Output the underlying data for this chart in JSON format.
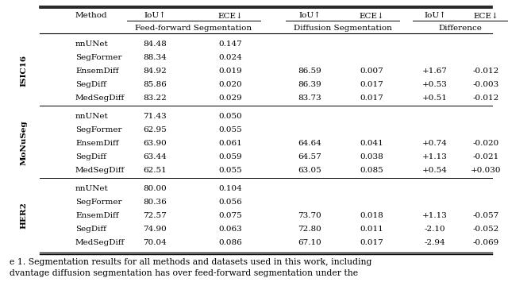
{
  "col_headers_row1": [
    "Method",
    "IoU↑",
    "ECE↓",
    "IoU↑",
    "ECE↓",
    "IoU↑",
    "ECE↓"
  ],
  "col_headers_row2": [
    "Feed-forward Segmentation",
    "Diffusion Segmentation",
    "Difference"
  ],
  "datasets": [
    "ISIC16",
    "MoNuSeg",
    "HER2"
  ],
  "rows": {
    "ISIC16": [
      [
        "nnUNet",
        "84.48",
        "0.147",
        "",
        "",
        "",
        ""
      ],
      [
        "SegFormer",
        "88.34",
        "0.024",
        "",
        "",
        "",
        ""
      ],
      [
        "EnsemDiff",
        "84.92",
        "0.019",
        "86.59",
        "0.007",
        "+1.67",
        "-0.012"
      ],
      [
        "SegDiff",
        "85.86",
        "0.020",
        "86.39",
        "0.017",
        "+0.53",
        "-0.003"
      ],
      [
        "MedSegDiff",
        "83.22",
        "0.029",
        "83.73",
        "0.017",
        "+0.51",
        "-0.012"
      ]
    ],
    "MoNuSeg": [
      [
        "nnUNet",
        "71.43",
        "0.050",
        "",
        "",
        "",
        ""
      ],
      [
        "SegFormer",
        "62.95",
        "0.055",
        "",
        "",
        "",
        ""
      ],
      [
        "EnsemDiff",
        "63.90",
        "0.061",
        "64.64",
        "0.041",
        "+0.74",
        "-0.020"
      ],
      [
        "SegDiff",
        "63.44",
        "0.059",
        "64.57",
        "0.038",
        "+1.13",
        "-0.021"
      ],
      [
        "MedSegDiff",
        "62.51",
        "0.055",
        "63.05",
        "0.085",
        "+0.54",
        "+0.030"
      ]
    ],
    "HER2": [
      [
        "nnUNet",
        "80.00",
        "0.104",
        "",
        "",
        "",
        ""
      ],
      [
        "SegFormer",
        "80.36",
        "0.056",
        "",
        "",
        "",
        ""
      ],
      [
        "EnsemDiff",
        "72.57",
        "0.075",
        "73.70",
        "0.018",
        "+1.13",
        "-0.057"
      ],
      [
        "SegDiff",
        "74.90",
        "0.063",
        "72.80",
        "0.011",
        "-2.10",
        "-0.052"
      ],
      [
        "MedSegDiff",
        "70.04",
        "0.086",
        "67.10",
        "0.017",
        "-2.94",
        "-0.069"
      ]
    ]
  },
  "caption_line1": "e 1. Segmentation results for all methods and datasets used in this work, including",
  "caption_line2": "dvantage diffusion segmentation has over feed-forward segmentation under the",
  "bg_color": "#ffffff",
  "text_color": "#000000",
  "line_color": "#000000",
  "font_size": 7.5,
  "caption_font_size": 7.8
}
